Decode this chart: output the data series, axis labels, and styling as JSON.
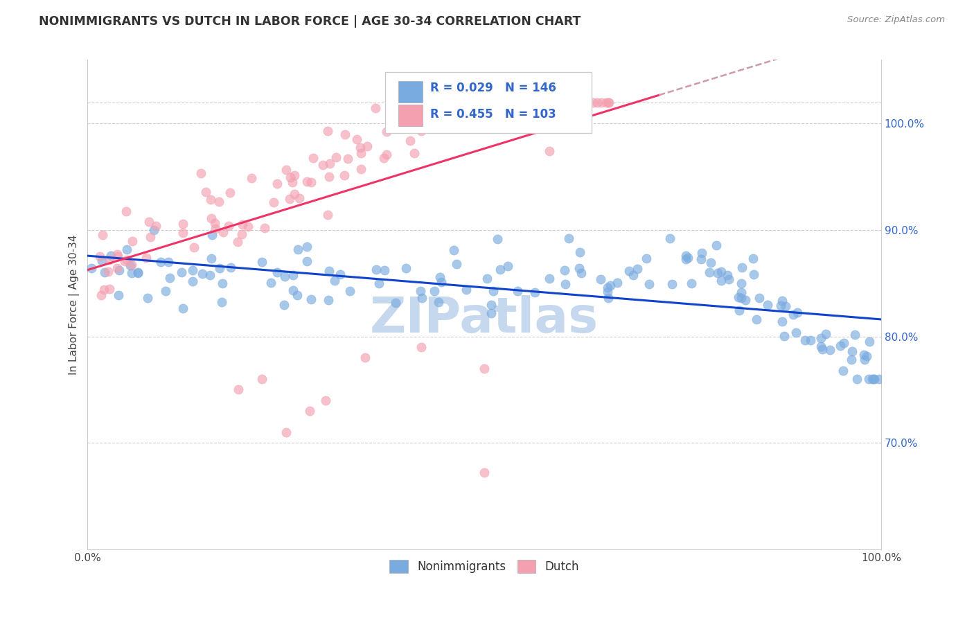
{
  "title": "NONIMMIGRANTS VS DUTCH IN LABOR FORCE | AGE 30-34 CORRELATION CHART",
  "source": "Source: ZipAtlas.com",
  "ylabel": "In Labor Force | Age 30-34",
  "xlim": [
    0.0,
    1.0
  ],
  "ylim": [
    0.6,
    1.06
  ],
  "yticks": [
    0.7,
    0.8,
    0.9,
    1.0
  ],
  "ytick_labels": [
    "70.0%",
    "80.0%",
    "90.0%",
    "100.0%"
  ],
  "blue_R": 0.029,
  "blue_N": 146,
  "pink_R": 0.455,
  "pink_N": 103,
  "blue_color": "#7AABE0",
  "pink_color": "#F4A0B0",
  "trendline_blue": "#1144CC",
  "trendline_pink": "#EE3366",
  "trendline_dashed": "#CC99AA",
  "watermark": "ZIPatlas",
  "watermark_color": "#C5D8EE",
  "title_fontsize": 12.5,
  "axis_label_color": "#3366CC",
  "legend_box_color": "#DDDDDD",
  "spine_color": "#CCCCCC"
}
